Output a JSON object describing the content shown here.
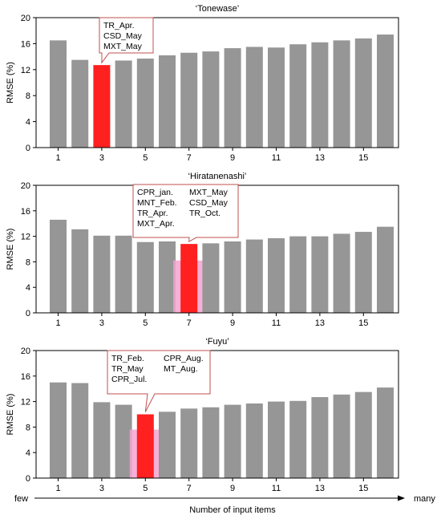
{
  "chart_data": [
    {
      "type": "bar",
      "title": "‘Tonewase’",
      "ylabel": "RMSE (%)",
      "xlabel": "",
      "ylim": [
        0,
        20
      ],
      "yticks": [
        "0",
        "4",
        "8",
        "12",
        "16",
        "20"
      ],
      "x": [
        1,
        2,
        3,
        4,
        5,
        6,
        7,
        8,
        9,
        10,
        11,
        12,
        13,
        14,
        15,
        16
      ],
      "xticks": [
        "1",
        "3",
        "5",
        "7",
        "9",
        "11",
        "13",
        "15"
      ],
      "values": [
        16.5,
        13.5,
        12.7,
        13.4,
        13.7,
        14.2,
        14.6,
        14.8,
        15.3,
        15.5,
        15.4,
        15.9,
        16.2,
        16.5,
        16.8,
        17.4
      ],
      "highlight_index": 2,
      "callout_columns": [
        [
          "TR_Apr.",
          "CSD_May",
          "MXT_May"
        ]
      ],
      "bar_color": "#969696",
      "highlight_color": "#ff2020"
    },
    {
      "type": "bar",
      "title": "‘Hiratanenashi’",
      "ylabel": "RMSE (%)",
      "xlabel": "",
      "ylim": [
        0,
        20
      ],
      "yticks": [
        "0",
        "4",
        "8",
        "12",
        "16",
        "20"
      ],
      "x": [
        1,
        2,
        3,
        4,
        5,
        6,
        7,
        8,
        9,
        10,
        11,
        12,
        13,
        14,
        15,
        16
      ],
      "xticks": [
        "1",
        "3",
        "5",
        "7",
        "9",
        "11",
        "13",
        "15"
      ],
      "values": [
        14.6,
        13.1,
        12.1,
        12.1,
        11.1,
        11.2,
        10.8,
        10.9,
        11.2,
        11.5,
        11.7,
        12.0,
        12.0,
        12.4,
        12.7,
        13.5
      ],
      "highlight_index": 6,
      "callout_columns": [
        [
          "CPR_jan.",
          "MNT_Feb.",
          "TR_Apr.",
          "MXT_Apr."
        ],
        [
          "MXT_May",
          "CSD_May",
          "TR_Oct."
        ]
      ],
      "bar_color": "#969696",
      "highlight_color": "#ff2020"
    },
    {
      "type": "bar",
      "title": "‘Fuyu’",
      "ylabel": "RMSE (%)",
      "xlabel": "",
      "ylim": [
        0,
        20
      ],
      "yticks": [
        "0",
        "4",
        "8",
        "12",
        "16",
        "20"
      ],
      "x": [
        1,
        2,
        3,
        4,
        5,
        6,
        7,
        8,
        9,
        10,
        11,
        12,
        13,
        14,
        15,
        16
      ],
      "xticks": [
        "1",
        "3",
        "5",
        "7",
        "9",
        "11",
        "13",
        "15"
      ],
      "values": [
        15.0,
        14.9,
        11.9,
        11.5,
        10.0,
        10.4,
        10.9,
        11.1,
        11.5,
        11.7,
        12.0,
        12.1,
        12.7,
        13.1,
        13.5,
        14.2
      ],
      "highlight_index": 4,
      "callout_columns": [
        [
          "TR_Feb.",
          "TR_May",
          "CPR_Jul."
        ],
        [
          "CPR_Aug.",
          "MT_Aug."
        ]
      ],
      "bar_color": "#969696",
      "highlight_color": "#ff2020"
    }
  ],
  "footer": {
    "left_label": "few",
    "right_label": "many",
    "axis_label": "Number of input items"
  }
}
